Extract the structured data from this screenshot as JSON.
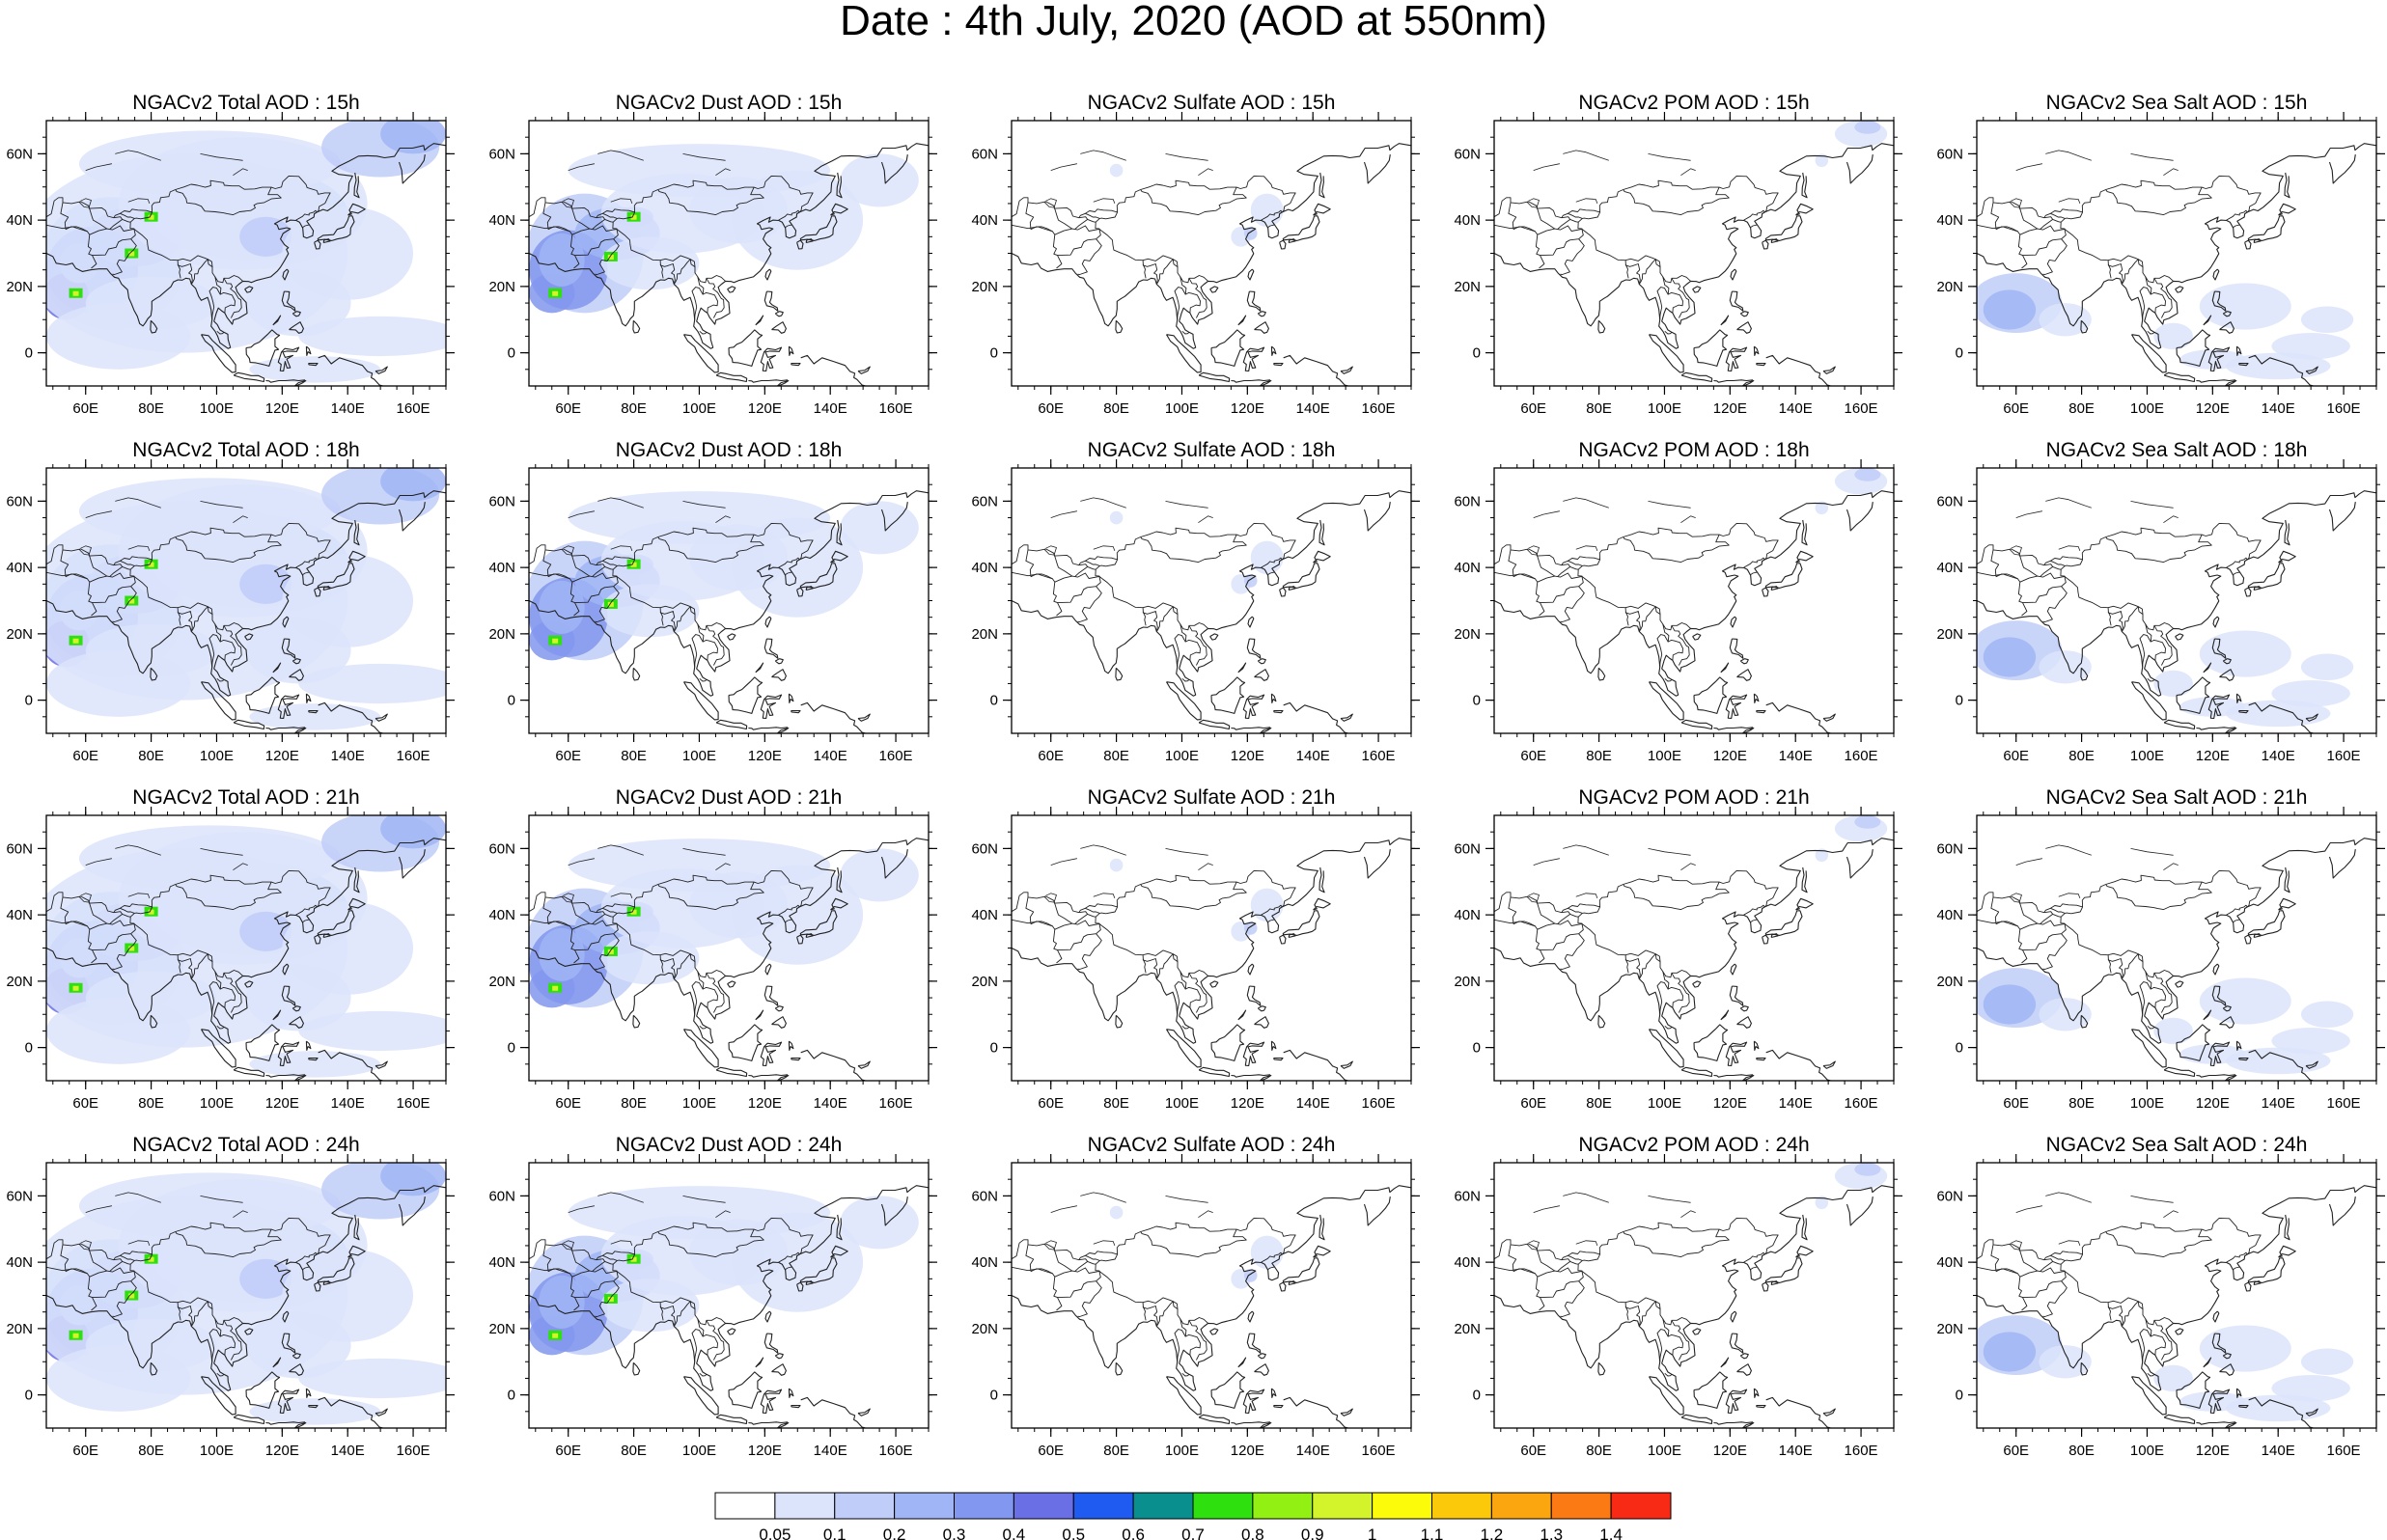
{
  "figure": {
    "title": "Date : 4th July, 2020 (AOD at 550nm)"
  },
  "axes": {
    "lat_ticks": [
      "60N",
      "40N",
      "20N",
      "0"
    ],
    "lon_ticks": [
      "60E",
      "80E",
      "100E",
      "120E",
      "140E",
      "160E"
    ],
    "lon_range": [
      48,
      170
    ],
    "lat_range": [
      -10,
      70
    ]
  },
  "panels": [
    {
      "id": "total-15",
      "species": "total",
      "title": "NGACv2 Total AOD : 15h"
    },
    {
      "id": "dust-15",
      "species": "dust",
      "title": "NGACv2 Dust AOD : 15h"
    },
    {
      "id": "sulfate-15",
      "species": "sulfate",
      "title": "NGACv2 Sulfate AOD : 15h"
    },
    {
      "id": "pom-15",
      "species": "pom",
      "title": "NGACv2 POM AOD : 15h"
    },
    {
      "id": "seasalt-15",
      "species": "seasalt",
      "title": "NGACv2 Sea Salt AOD : 15h"
    },
    {
      "id": "total-18",
      "species": "total",
      "title": "NGACv2 Total AOD : 18h"
    },
    {
      "id": "dust-18",
      "species": "dust",
      "title": "NGACv2 Dust AOD : 18h"
    },
    {
      "id": "sulfate-18",
      "species": "sulfate",
      "title": "NGACv2 Sulfate AOD : 18h"
    },
    {
      "id": "pom-18",
      "species": "pom",
      "title": "NGACv2 POM AOD : 18h"
    },
    {
      "id": "seasalt-18",
      "species": "seasalt",
      "title": "NGACv2 Sea Salt AOD : 18h"
    },
    {
      "id": "total-21",
      "species": "total",
      "title": "NGACv2 Total AOD : 21h"
    },
    {
      "id": "dust-21",
      "species": "dust",
      "title": "NGACv2 Dust AOD : 21h"
    },
    {
      "id": "sulfate-21",
      "species": "sulfate",
      "title": "NGACv2 Sulfate AOD : 21h"
    },
    {
      "id": "pom-21",
      "species": "pom",
      "title": "NGACv2 POM AOD : 21h"
    },
    {
      "id": "seasalt-21",
      "species": "seasalt",
      "title": "NGACv2 Sea Salt AOD : 21h"
    },
    {
      "id": "total-24",
      "species": "total",
      "title": "NGACv2 Total AOD : 24h"
    },
    {
      "id": "dust-24",
      "species": "dust",
      "title": "NGACv2 Dust AOD : 24h"
    },
    {
      "id": "sulfate-24",
      "species": "sulfate",
      "title": "NGACv2 Sulfate AOD : 24h"
    },
    {
      "id": "pom-24",
      "species": "pom",
      "title": "NGACv2 POM AOD : 24h"
    },
    {
      "id": "seasalt-24",
      "species": "seasalt",
      "title": "NGACv2 Sea Salt  AOD : 24h"
    }
  ],
  "colorbar": {
    "labels": [
      "0.05",
      "0.1",
      "0.2",
      "0.3",
      "0.4",
      "0.5",
      "0.6",
      "0.7",
      "0.8",
      "0.9",
      "1",
      "1.1",
      "1.2",
      "1.3",
      "1.4"
    ],
    "colors": [
      "#ffffff",
      "#dce4fb",
      "#bfcdf8",
      "#a0b5f5",
      "#8297ef",
      "#6a6fe6",
      "#1f5bf0",
      "#0a8f8f",
      "#2fe00f",
      "#92f012",
      "#d3f42a",
      "#fbfb0a",
      "#fbc80a",
      "#fca60f",
      "#fb7a14",
      "#f82a16"
    ]
  },
  "colors": {
    "land_outline": "#222222",
    "frame": "#000000"
  }
}
